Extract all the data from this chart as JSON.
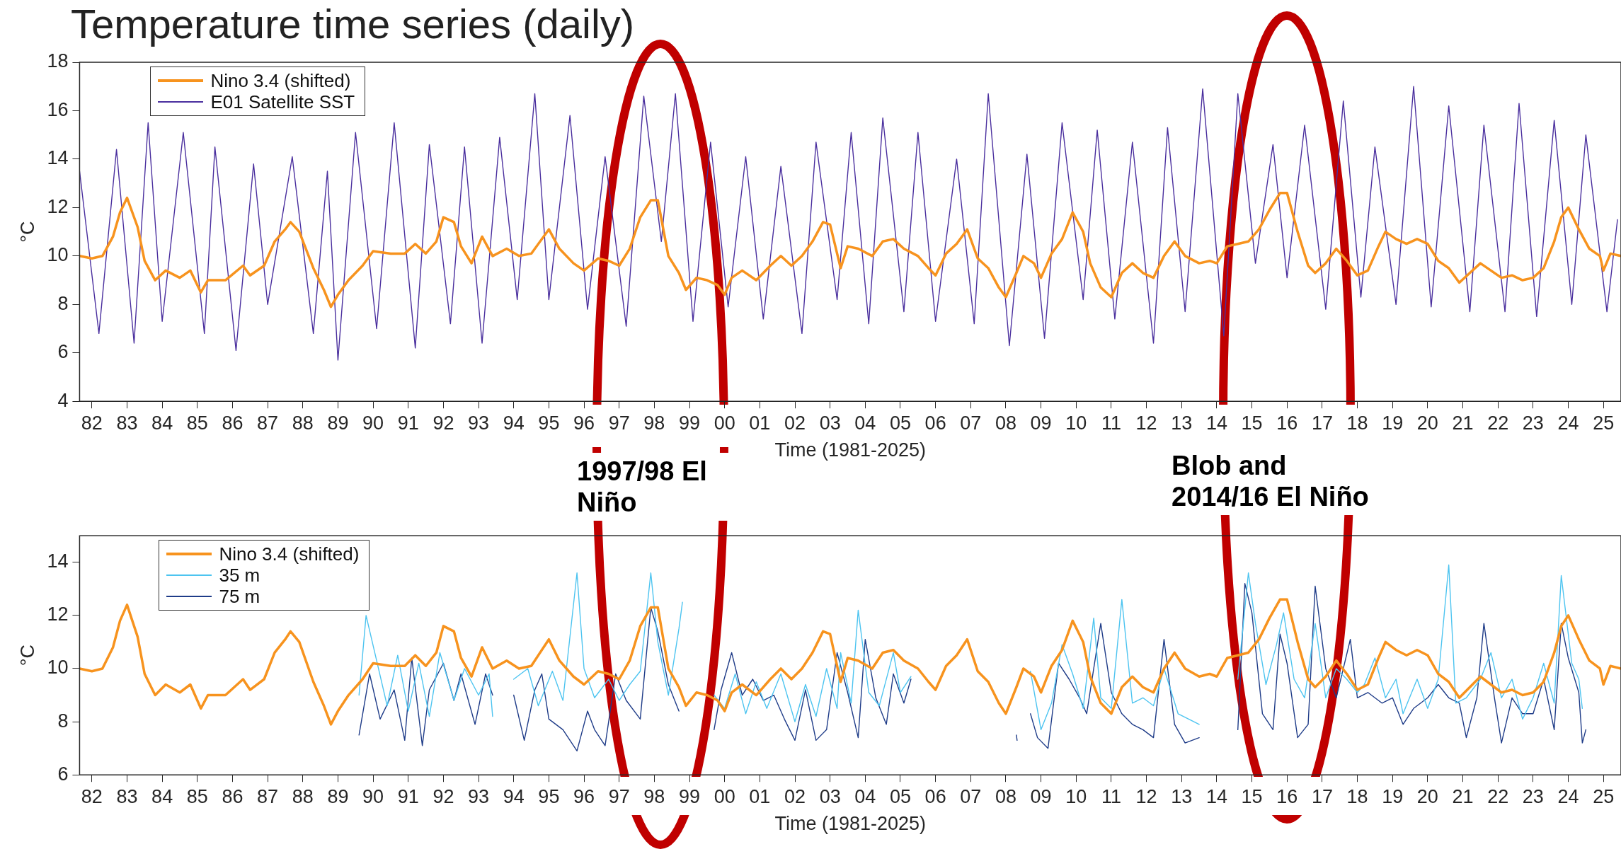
{
  "chart_data": [
    {
      "type": "line",
      "title": "Temperature time series (daily)",
      "xlabel": "Time (1981-2025)",
      "ylabel": "°C",
      "legend": "top left",
      "xlim": [
        1981.65,
        2025.5
      ],
      "ylim": [
        4,
        18
      ],
      "yticks": [
        4,
        6,
        8,
        10,
        12,
        14,
        16,
        18
      ],
      "xticks": [
        {
          "value": 1982,
          "label": "82"
        },
        {
          "value": 1983,
          "label": "83"
        },
        {
          "value": 1984,
          "label": "84"
        },
        {
          "value": 1985,
          "label": "85"
        },
        {
          "value": 1986,
          "label": "86"
        },
        {
          "value": 1987,
          "label": "87"
        },
        {
          "value": 1988,
          "label": "88"
        },
        {
          "value": 1989,
          "label": "89"
        },
        {
          "value": 1990,
          "label": "90"
        },
        {
          "value": 1991,
          "label": "91"
        },
        {
          "value": 1992,
          "label": "92"
        },
        {
          "value": 1993,
          "label": "93"
        },
        {
          "value": 1994,
          "label": "94"
        },
        {
          "value": 1995,
          "label": "95"
        },
        {
          "value": 1996,
          "label": "96"
        },
        {
          "value": 1997,
          "label": "97"
        },
        {
          "value": 1998,
          "label": "98"
        },
        {
          "value": 1999,
          "label": "99"
        },
        {
          "value": 2000,
          "label": "00"
        },
        {
          "value": 2001,
          "label": "01"
        },
        {
          "value": 2002,
          "label": "02"
        },
        {
          "value": 2003,
          "label": "03"
        },
        {
          "value": 2004,
          "label": "04"
        },
        {
          "value": 2005,
          "label": "05"
        },
        {
          "value": 2006,
          "label": "06"
        },
        {
          "value": 2007,
          "label": "07"
        },
        {
          "value": 2008,
          "label": "08"
        },
        {
          "value": 2009,
          "label": "09"
        },
        {
          "value": 2010,
          "label": "10"
        },
        {
          "value": 2011,
          "label": "11"
        },
        {
          "value": 2012,
          "label": "12"
        },
        {
          "value": 2013,
          "label": "13"
        },
        {
          "value": 2014,
          "label": "14"
        },
        {
          "value": 2015,
          "label": "15"
        },
        {
          "value": 2016,
          "label": "16"
        },
        {
          "value": 2017,
          "label": "17"
        },
        {
          "value": 2018,
          "label": "18"
        },
        {
          "value": 2019,
          "label": "19"
        },
        {
          "value": 2020,
          "label": "20"
        },
        {
          "value": 2021,
          "label": "21"
        },
        {
          "value": 2022,
          "label": "22"
        },
        {
          "value": 2023,
          "label": "23"
        },
        {
          "value": 2024,
          "label": "24"
        },
        {
          "value": 2025,
          "label": "25"
        }
      ],
      "annotations": [
        "1997/98 El Niño",
        "Blob and 2014/16 El Niño"
      ],
      "x": [
        1981.65,
        1982.0,
        1982.3,
        1982.6,
        1982.8,
        1983.0,
        1983.3,
        1983.5,
        1983.8,
        1984.1,
        1984.5,
        1984.8,
        1985.1,
        1985.3,
        1985.8,
        1986.3,
        1986.5,
        1986.9,
        1987.2,
        1987.5,
        1987.65,
        1987.9,
        1988.3,
        1988.6,
        1988.8,
        1989.0,
        1989.3,
        1989.7,
        1990.0,
        1990.5,
        1990.9,
        1991.2,
        1991.5,
        1991.8,
        1992.0,
        1992.3,
        1992.5,
        1992.8,
        1993.1,
        1993.4,
        1993.8,
        1994.15,
        1994.5,
        1995.0,
        1995.3,
        1995.7,
        1996.0,
        1996.4,
        1996.7,
        1997.0,
        1997.3,
        1997.6,
        1997.9,
        1998.1,
        1998.4,
        1998.7,
        1998.9,
        1999.2,
        1999.5,
        1999.8,
        2000.0,
        2000.2,
        2000.5,
        2000.9,
        2001.3,
        2001.6,
        2001.9,
        2002.2,
        2002.5,
        2002.8,
        2003.0,
        2003.3,
        2003.5,
        2003.8,
        2004.2,
        2004.5,
        2004.8,
        2005.1,
        2005.5,
        2005.8,
        2006.0,
        2006.3,
        2006.6,
        2006.9,
        2007.2,
        2007.5,
        2007.8,
        2008.0,
        2008.3,
        2008.5,
        2008.8,
        2009.0,
        2009.3,
        2009.6,
        2009.9,
        2010.2,
        2010.4,
        2010.7,
        2011.0,
        2011.3,
        2011.6,
        2011.9,
        2012.2,
        2012.5,
        2012.8,
        2013.1,
        2013.5,
        2013.8,
        2014.0,
        2014.3,
        2014.6,
        2014.9,
        2015.2,
        2015.5,
        2015.8,
        2016.0,
        2016.3,
        2016.6,
        2016.8,
        2017.1,
        2017.4,
        2017.7,
        2018.0,
        2018.3,
        2018.6,
        2018.8,
        2019.1,
        2019.4,
        2019.7,
        2020.0,
        2020.3,
        2020.6,
        2020.9,
        2021.2,
        2021.5,
        2021.8,
        2022.1,
        2022.4,
        2022.7,
        2023.0,
        2023.3,
        2023.6,
        2023.8,
        2024.0,
        2024.3,
        2024.6,
        2024.9,
        2025.0,
        2025.2,
        2025.5
      ],
      "series": [
        {
          "name": "Nino 3.4 (shifted)",
          "color": "#f7931e",
          "values": [
            10.0,
            9.9,
            10.0,
            10.8,
            11.8,
            12.4,
            11.2,
            9.8,
            9.0,
            9.4,
            9.1,
            9.4,
            8.5,
            9.0,
            9.0,
            9.6,
            9.2,
            9.6,
            10.6,
            11.1,
            11.4,
            11.0,
            9.5,
            8.6,
            7.9,
            8.4,
            9.0,
            9.6,
            10.2,
            10.1,
            10.1,
            10.5,
            10.1,
            10.6,
            11.6,
            11.4,
            10.4,
            9.7,
            10.8,
            10.0,
            10.3,
            10.0,
            10.1,
            11.1,
            10.3,
            9.7,
            9.4,
            9.9,
            9.8,
            9.6,
            10.3,
            11.6,
            12.3,
            12.3,
            10.0,
            9.3,
            8.6,
            9.1,
            9.0,
            8.8,
            8.4,
            9.1,
            9.4,
            9.0,
            9.6,
            10.0,
            9.6,
            10.0,
            10.6,
            11.4,
            11.3,
            9.5,
            10.4,
            10.3,
            10.0,
            10.6,
            10.7,
            10.3,
            10.0,
            9.5,
            9.2,
            10.1,
            10.5,
            11.1,
            9.9,
            9.5,
            8.7,
            8.3,
            9.3,
            10.0,
            9.7,
            9.1,
            10.1,
            10.7,
            11.8,
            11.0,
            9.7,
            8.7,
            8.3,
            9.3,
            9.7,
            9.3,
            9.1,
            10.0,
            10.6,
            10.0,
            9.7,
            9.8,
            9.7,
            10.4,
            10.5,
            10.6,
            11.1,
            11.9,
            12.6,
            12.6,
            11.0,
            9.6,
            9.3,
            9.7,
            10.3,
            9.8,
            9.2,
            9.4,
            10.4,
            11.0,
            10.7,
            10.5,
            10.7,
            10.5,
            9.8,
            9.5,
            8.9,
            9.3,
            9.7,
            9.4,
            9.1,
            9.2,
            9.0,
            9.1,
            9.5,
            10.6,
            11.6,
            12.0,
            11.1,
            10.3,
            10.0,
            9.4,
            10.1,
            10.0
          ]
        },
        {
          "name": "E01 Satellite SST",
          "color": "#4a2f9e",
          "x": [
            1981.65,
            1982.2,
            1982.7,
            1983.2,
            1983.6,
            1984.0,
            1984.6,
            1985.2,
            1985.5,
            1986.1,
            1986.6,
            1987.0,
            1987.7,
            1988.3,
            1988.7,
            1989.0,
            1989.5,
            1990.1,
            1990.6,
            1991.2,
            1991.6,
            1992.2,
            1992.6,
            1993.1,
            1993.6,
            1994.1,
            1994.6,
            1995.0,
            1995.6,
            1996.1,
            1996.6,
            1997.2,
            1997.7,
            1998.2,
            1998.6,
            1999.1,
            1999.6,
            2000.1,
            2000.6,
            2001.1,
            2001.6,
            2002.2,
            2002.6,
            2003.2,
            2003.6,
            2004.1,
            2004.5,
            2005.1,
            2005.5,
            2006.0,
            2006.6,
            2007.1,
            2007.5,
            2008.1,
            2008.6,
            2009.1,
            2009.6,
            2010.2,
            2010.6,
            2011.1,
            2011.6,
            2012.2,
            2012.6,
            2013.1,
            2013.6,
            2014.2,
            2014.6,
            2015.1,
            2015.6,
            2016.0,
            2016.5,
            2017.1,
            2017.6,
            2018.1,
            2018.5,
            2019.1,
            2019.6,
            2020.1,
            2020.6,
            2021.2,
            2021.6,
            2022.2,
            2022.6,
            2023.1,
            2023.6,
            2024.1,
            2024.5,
            2025.1,
            2025.4
          ],
          "values": [
            13.5,
            6.8,
            14.4,
            6.4,
            15.5,
            7.3,
            15.1,
            6.8,
            14.5,
            6.1,
            13.8,
            8.0,
            14.1,
            6.8,
            13.5,
            5.7,
            15.1,
            7.0,
            15.5,
            6.2,
            14.6,
            7.2,
            14.5,
            6.4,
            14.9,
            8.2,
            16.7,
            8.2,
            15.8,
            7.8,
            14.1,
            7.1,
            16.6,
            10.6,
            16.7,
            7.3,
            14.7,
            7.9,
            14.1,
            7.4,
            13.7,
            6.8,
            14.7,
            8.2,
            15.1,
            7.2,
            15.7,
            7.7,
            15.1,
            7.3,
            14.0,
            7.2,
            16.7,
            6.3,
            14.2,
            6.6,
            15.5,
            8.2,
            15.2,
            7.4,
            14.7,
            6.4,
            15.3,
            7.7,
            16.9,
            6.7,
            16.7,
            9.7,
            14.6,
            9.1,
            15.4,
            7.8,
            16.4,
            8.3,
            14.5,
            8.0,
            17.0,
            7.9,
            16.2,
            7.7,
            15.4,
            7.7,
            16.3,
            7.5,
            15.6,
            8.0,
            15.0,
            7.7,
            11.5
          ]
        }
      ]
    },
    {
      "type": "line",
      "xlabel": "Time (1981-2025)",
      "ylabel": "°C",
      "legend": "top left",
      "xlim": [
        1981.65,
        2025.5
      ],
      "ylim": [
        6,
        15
      ],
      "yticks": [
        6,
        8,
        10,
        12,
        14
      ],
      "xticks": [
        {
          "value": 1982,
          "label": "82"
        },
        {
          "value": 1983,
          "label": "83"
        },
        {
          "value": 1984,
          "label": "84"
        },
        {
          "value": 1985,
          "label": "85"
        },
        {
          "value": 1986,
          "label": "86"
        },
        {
          "value": 1987,
          "label": "87"
        },
        {
          "value": 1988,
          "label": "88"
        },
        {
          "value": 1989,
          "label": "89"
        },
        {
          "value": 1990,
          "label": "90"
        },
        {
          "value": 1991,
          "label": "91"
        },
        {
          "value": 1992,
          "label": "92"
        },
        {
          "value": 1993,
          "label": "93"
        },
        {
          "value": 1994,
          "label": "94"
        },
        {
          "value": 1995,
          "label": "95"
        },
        {
          "value": 1996,
          "label": "96"
        },
        {
          "value": 1997,
          "label": "97"
        },
        {
          "value": 1998,
          "label": "98"
        },
        {
          "value": 1999,
          "label": "99"
        },
        {
          "value": 2000,
          "label": "00"
        },
        {
          "value": 2001,
          "label": "01"
        },
        {
          "value": 2002,
          "label": "02"
        },
        {
          "value": 2003,
          "label": "03"
        },
        {
          "value": 2004,
          "label": "04"
        },
        {
          "value": 2005,
          "label": "05"
        },
        {
          "value": 2006,
          "label": "06"
        },
        {
          "value": 2007,
          "label": "07"
        },
        {
          "value": 2008,
          "label": "08"
        },
        {
          "value": 2009,
          "label": "09"
        },
        {
          "value": 2010,
          "label": "10"
        },
        {
          "value": 2011,
          "label": "11"
        },
        {
          "value": 2012,
          "label": "12"
        },
        {
          "value": 2013,
          "label": "13"
        },
        {
          "value": 2014,
          "label": "14"
        },
        {
          "value": 2015,
          "label": "15"
        },
        {
          "value": 2016,
          "label": "16"
        },
        {
          "value": 2017,
          "label": "17"
        },
        {
          "value": 2018,
          "label": "18"
        },
        {
          "value": 2019,
          "label": "19"
        },
        {
          "value": 2020,
          "label": "20"
        },
        {
          "value": 2021,
          "label": "21"
        },
        {
          "value": 2022,
          "label": "22"
        },
        {
          "value": 2023,
          "label": "23"
        },
        {
          "value": 2024,
          "label": "24"
        },
        {
          "value": 2025,
          "label": "25"
        }
      ],
      "x": [
        1981.65,
        1982.0,
        1982.3,
        1982.6,
        1982.8,
        1983.0,
        1983.3,
        1983.5,
        1983.8,
        1984.1,
        1984.5,
        1984.8,
        1985.1,
        1985.3,
        1985.8,
        1986.3,
        1986.5,
        1986.9,
        1987.2,
        1987.5,
        1987.65,
        1987.9,
        1988.3,
        1988.6,
        1988.8,
        1989.0,
        1989.3,
        1989.7,
        1990.0,
        1990.5,
        1990.9,
        1991.2,
        1991.5,
        1991.8,
        1992.0,
        1992.3,
        1992.5,
        1992.8,
        1993.1,
        1993.4,
        1993.8,
        1994.15,
        1994.5,
        1995.0,
        1995.3,
        1995.7,
        1996.0,
        1996.4,
        1996.7,
        1997.0,
        1997.3,
        1997.6,
        1997.9,
        1998.1,
        1998.4,
        1998.7,
        1998.9,
        1999.2,
        1999.5,
        1999.8,
        2000.0,
        2000.2,
        2000.5,
        2000.9,
        2001.3,
        2001.6,
        2001.9,
        2002.2,
        2002.5,
        2002.8,
        2003.0,
        2003.3,
        2003.5,
        2003.8,
        2004.2,
        2004.5,
        2004.8,
        2005.1,
        2005.5,
        2005.8,
        2006.0,
        2006.3,
        2006.6,
        2006.9,
        2007.2,
        2007.5,
        2007.8,
        2008.0,
        2008.3,
        2008.5,
        2008.8,
        2009.0,
        2009.3,
        2009.6,
        2009.9,
        2010.2,
        2010.4,
        2010.7,
        2011.0,
        2011.3,
        2011.6,
        2011.9,
        2012.2,
        2012.5,
        2012.8,
        2013.1,
        2013.5,
        2013.8,
        2014.0,
        2014.3,
        2014.6,
        2014.9,
        2015.2,
        2015.5,
        2015.8,
        2016.0,
        2016.3,
        2016.6,
        2016.8,
        2017.1,
        2017.4,
        2017.7,
        2018.0,
        2018.3,
        2018.6,
        2018.8,
        2019.1,
        2019.4,
        2019.7,
        2020.0,
        2020.3,
        2020.6,
        2020.9,
        2021.2,
        2021.5,
        2021.8,
        2022.1,
        2022.4,
        2022.7,
        2023.0,
        2023.3,
        2023.6,
        2023.8,
        2024.0,
        2024.3,
        2024.6,
        2024.9,
        2025.0,
        2025.2,
        2025.5
      ],
      "series": [
        {
          "name": "Nino 3.4 (shifted)",
          "color": "#f7931e",
          "values": [
            10.0,
            9.9,
            10.0,
            10.8,
            11.8,
            12.4,
            11.2,
            9.8,
            9.0,
            9.4,
            9.1,
            9.4,
            8.5,
            9.0,
            9.0,
            9.6,
            9.2,
            9.6,
            10.6,
            11.1,
            11.4,
            11.0,
            9.5,
            8.6,
            7.9,
            8.4,
            9.0,
            9.6,
            10.2,
            10.1,
            10.1,
            10.5,
            10.1,
            10.6,
            11.6,
            11.4,
            10.4,
            9.7,
            10.8,
            10.0,
            10.3,
            10.0,
            10.1,
            11.1,
            10.3,
            9.7,
            9.4,
            9.9,
            9.8,
            9.6,
            10.3,
            11.6,
            12.3,
            12.3,
            10.0,
            9.3,
            8.6,
            9.1,
            9.0,
            8.8,
            8.4,
            9.1,
            9.4,
            9.0,
            9.6,
            10.0,
            9.6,
            10.0,
            10.6,
            11.4,
            11.3,
            9.5,
            10.4,
            10.3,
            10.0,
            10.6,
            10.7,
            10.3,
            10.0,
            9.5,
            9.2,
            10.1,
            10.5,
            11.1,
            9.9,
            9.5,
            8.7,
            8.3,
            9.3,
            10.0,
            9.7,
            9.1,
            10.1,
            10.7,
            11.8,
            11.0,
            9.7,
            8.7,
            8.3,
            9.3,
            9.7,
            9.3,
            9.1,
            10.0,
            10.6,
            10.0,
            9.7,
            9.8,
            9.7,
            10.4,
            10.5,
            10.6,
            11.1,
            11.9,
            12.6,
            12.6,
            11.0,
            9.6,
            9.3,
            9.7,
            10.3,
            9.8,
            9.2,
            9.4,
            10.4,
            11.0,
            10.7,
            10.5,
            10.7,
            10.5,
            9.8,
            9.5,
            8.9,
            9.3,
            9.7,
            9.4,
            9.1,
            9.2,
            9.0,
            9.1,
            9.5,
            10.6,
            11.6,
            12.0,
            11.1,
            10.3,
            10.0,
            9.4,
            10.1,
            10.0
          ]
        },
        {
          "name": "35 m",
          "color": "#4dc4f0",
          "x": [
            1989.6,
            1989.8,
            1990.1,
            1990.4,
            1990.7,
            1991.0,
            1991.3,
            1991.6,
            1991.9,
            1992.3,
            1992.6,
            1993.0,
            1993.3,
            1993.4,
            1993.7,
            1994.0,
            1994.4,
            1994.7,
            1995.1,
            1995.4,
            1995.8,
            1996.0,
            1996.3,
            1996.7,
            1997.0,
            1997.3,
            1997.6,
            1997.9,
            1998.1,
            1998.4,
            1998.7,
            1998.8,
            1999.2,
            1999.7,
            2000.0,
            2000.3,
            2000.6,
            2000.9,
            2001.2,
            2001.6,
            2002.0,
            2002.3,
            2002.6,
            2002.9,
            2003.2,
            2003.3,
            2003.6,
            2003.8,
            2004.1,
            2004.4,
            2004.8,
            2005.0,
            2005.3,
            2007.0,
            2008.7,
            2009.0,
            2009.3,
            2009.6,
            2009.9,
            2010.2,
            2010.5,
            2010.7,
            2011.0,
            2011.3,
            2011.6,
            2011.9,
            2012.2,
            2012.5,
            2012.9,
            2013.2,
            2013.5,
            2014.0,
            2014.6,
            2014.9,
            2015.1,
            2015.4,
            2015.7,
            2015.9,
            2016.2,
            2016.5,
            2016.8,
            2017.1,
            2017.4,
            2017.7,
            2018.0,
            2018.2,
            2018.5,
            2018.8,
            2019.1,
            2019.3,
            2019.7,
            2020.0,
            2020.3,
            2020.6,
            2020.8,
            2021.1,
            2021.5,
            2021.8,
            2022.1,
            2022.4,
            2022.7,
            2023.0,
            2023.3,
            2023.6,
            2023.8,
            2024.1,
            2024.3,
            2024.4
          ],
          "values": [
            9.0,
            12.0,
            10.3,
            8.6,
            10.5,
            8.4,
            10.2,
            8.2,
            10.6,
            8.8,
            10.0,
            9.0,
            9.8,
            8.2,
            null,
            9.6,
            10.0,
            8.6,
            9.9,
            8.8,
            13.6,
            10.0,
            8.9,
            9.6,
            8.8,
            9.4,
            9.9,
            13.6,
            11.0,
            9.0,
            11.5,
            12.5,
            null,
            9.0,
            8.5,
            9.8,
            8.3,
            9.5,
            8.5,
            9.8,
            8.0,
            9.4,
            8.2,
            10.0,
            8.5,
            10.6,
            8.7,
            12.2,
            9.1,
            8.6,
            10.6,
            9.1,
            9.7,
            null,
            9.9,
            7.7,
            8.7,
            10.9,
            9.8,
            8.5,
            11.9,
            8.9,
            8.5,
            12.6,
            8.7,
            8.9,
            8.6,
            10.0,
            8.3,
            8.1,
            7.9,
            null,
            9.6,
            13.6,
            11.7,
            9.4,
            10.9,
            12.1,
            9.6,
            8.9,
            11.7,
            8.9,
            10.0,
            9.6,
            9.1,
            9.4,
            10.4,
            8.9,
            9.6,
            8.3,
            9.6,
            8.5,
            9.6,
            13.9,
            8.7,
            8.9,
            9.6,
            10.6,
            8.9,
            9.6,
            8.1,
            8.9,
            10.2,
            8.7,
            13.5,
            10.2,
            9.6,
            8.5
          ]
        },
        {
          "name": "75 m",
          "color": "#1f3c88",
          "x": [
            1989.6,
            1989.9,
            1990.2,
            1990.6,
            1990.9,
            1991.1,
            1991.4,
            1991.6,
            1992.0,
            1992.3,
            1992.5,
            1992.9,
            1993.2,
            1993.4,
            1993.7,
            1994.0,
            1994.3,
            1994.6,
            1994.8,
            1995.0,
            1995.4,
            1995.8,
            1996.1,
            1996.3,
            1996.6,
            1996.9,
            1997.2,
            1997.6,
            1997.9,
            1998.1,
            1998.4,
            1998.7,
            1999.2,
            1999.7,
            1999.9,
            2000.2,
            2000.5,
            2000.8,
            2001.1,
            2001.4,
            2001.7,
            2002.0,
            2002.3,
            2002.6,
            2002.9,
            2003.2,
            2003.5,
            2003.8,
            2004.0,
            2004.3,
            2004.6,
            2004.8,
            2005.1,
            2005.3,
            2007.0,
            2008.3,
            2008.32,
            2008.5,
            2008.7,
            2008.9,
            2009.2,
            2009.5,
            2009.8,
            2010.1,
            2010.3,
            2010.7,
            2011.0,
            2011.3,
            2011.6,
            2011.9,
            2012.2,
            2012.5,
            2012.8,
            2013.1,
            2013.5,
            2014.0,
            2014.6,
            2014.8,
            2015.0,
            2015.3,
            2015.6,
            2015.8,
            2016.0,
            2016.3,
            2016.6,
            2016.8,
            2017.1,
            2017.4,
            2017.8,
            2018.0,
            2018.3,
            2018.7,
            2019.0,
            2019.3,
            2019.6,
            2020.0,
            2020.3,
            2020.6,
            2020.9,
            2021.1,
            2021.4,
            2021.6,
            2021.9,
            2022.1,
            2022.4,
            2022.7,
            2023.0,
            2023.3,
            2023.6,
            2023.8,
            2024.0,
            2024.3,
            2024.4,
            2024.5
          ],
          "values": [
            7.5,
            9.8,
            8.1,
            9.2,
            7.3,
            10.4,
            7.1,
            9.2,
            10.2,
            8.8,
            9.8,
            7.9,
            9.8,
            9.0,
            null,
            9.0,
            7.3,
            9.2,
            9.8,
            8.1,
            7.7,
            6.9,
            8.4,
            7.7,
            7.1,
            9.8,
            8.8,
            8.1,
            12.3,
            11.4,
            9.4,
            8.4,
            null,
            7.7,
            9.2,
            10.6,
            9.0,
            9.6,
            8.8,
            9.0,
            8.1,
            7.3,
            9.2,
            7.3,
            7.7,
            10.6,
            9.1,
            7.4,
            11.1,
            8.9,
            7.9,
            9.8,
            8.7,
            9.6,
            null,
            7.5,
            7.3,
            null,
            8.3,
            7.4,
            7.0,
            10.2,
            9.6,
            8.9,
            8.3,
            11.7,
            9.1,
            8.3,
            7.9,
            7.7,
            7.4,
            11.1,
            7.9,
            7.2,
            7.4,
            null,
            7.7,
            13.2,
            12.1,
            8.3,
            7.7,
            11.3,
            10.2,
            7.4,
            7.9,
            13.1,
            10.0,
            8.9,
            11.1,
            8.9,
            9.1,
            8.7,
            8.9,
            7.9,
            8.5,
            8.9,
            9.4,
            8.9,
            8.7,
            7.4,
            8.9,
            11.7,
            8.9,
            7.2,
            8.9,
            8.3,
            8.3,
            9.6,
            7.7,
            11.7,
            10.4,
            9.1,
            7.2,
            7.7
          ]
        }
      ]
    }
  ]
}
